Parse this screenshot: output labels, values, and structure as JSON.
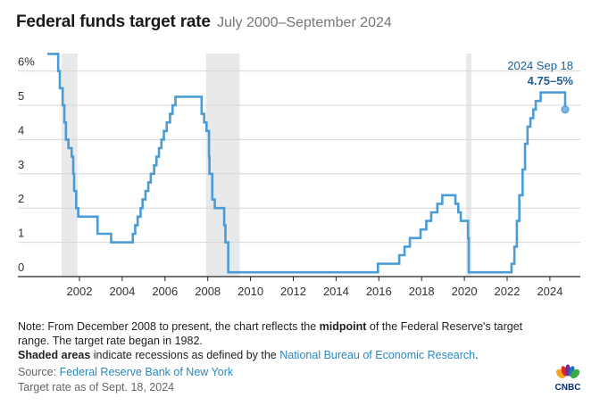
{
  "header": {
    "title": "Federal funds target rate",
    "subtitle": "July 2000–September 2024"
  },
  "annotation": {
    "date": "2024 Sep 18",
    "value": "4.75–5%"
  },
  "notes": {
    "note_prefix": "Note: From December 2008 to present, the chart reflects the ",
    "note_bold": "midpoint",
    "note_suffix": " of the Federal Reserve's target range. The target rate began in 1982.",
    "shaded_bold": "Shaded areas",
    "shaded_text": " indicate recessions as defined by the ",
    "shaded_link": "National Bureau of Economic Research",
    "shaded_end": ".",
    "source_label": "Source: ",
    "source_link": "Federal Reserve Bank of New York",
    "asof": "Target rate as of Sept. 18, 2024"
  },
  "logo": {
    "text": "CNBC"
  },
  "colors": {
    "line": "#4a9bd6",
    "recession": "#e8e9eb",
    "grid": "#d6d6d6",
    "annotation": "#1d5f95"
  },
  "chart_data": {
    "type": "line",
    "step": true,
    "ylim": [
      0,
      6
    ],
    "xlim": [
      "2000-07-01",
      "2024-09-30"
    ],
    "yticks": [
      {
        "v": 0,
        "label": "0"
      },
      {
        "v": 1,
        "label": "1"
      },
      {
        "v": 2,
        "label": "2"
      },
      {
        "v": 3,
        "label": "3"
      },
      {
        "v": 4,
        "label": "4"
      },
      {
        "v": 5,
        "label": "5"
      },
      {
        "v": 6,
        "label": "6%"
      }
    ],
    "xticks": [
      "2002",
      "2004",
      "2006",
      "2008",
      "2010",
      "2012",
      "2014",
      "2016",
      "2018",
      "2020",
      "2022",
      "2024"
    ],
    "grid": true,
    "recessions": [
      [
        "2001-03-01",
        "2001-11-30"
      ],
      [
        "2007-12-01",
        "2009-06-30"
      ],
      [
        "2020-02-01",
        "2020-04-30"
      ]
    ],
    "series": [
      {
        "points": [
          [
            "2000-07-01",
            6.5
          ],
          [
            "2001-01-03",
            6.0
          ],
          [
            "2001-01-31",
            5.5
          ],
          [
            "2001-03-20",
            5.0
          ],
          [
            "2001-04-18",
            4.5
          ],
          [
            "2001-05-15",
            4.0
          ],
          [
            "2001-06-27",
            3.75
          ],
          [
            "2001-08-21",
            3.5
          ],
          [
            "2001-09-17",
            3.0
          ],
          [
            "2001-10-02",
            2.5
          ],
          [
            "2001-11-06",
            2.0
          ],
          [
            "2001-12-11",
            1.75
          ],
          [
            "2002-11-06",
            1.25
          ],
          [
            "2003-06-25",
            1.0
          ],
          [
            "2004-06-30",
            1.25
          ],
          [
            "2004-08-10",
            1.5
          ],
          [
            "2004-09-21",
            1.75
          ],
          [
            "2004-11-10",
            2.0
          ],
          [
            "2004-12-14",
            2.25
          ],
          [
            "2005-02-02",
            2.5
          ],
          [
            "2005-03-22",
            2.75
          ],
          [
            "2005-05-03",
            3.0
          ],
          [
            "2005-06-30",
            3.25
          ],
          [
            "2005-08-09",
            3.5
          ],
          [
            "2005-09-20",
            3.75
          ],
          [
            "2005-11-01",
            4.0
          ],
          [
            "2005-12-13",
            4.25
          ],
          [
            "2006-01-31",
            4.5
          ],
          [
            "2006-03-28",
            4.75
          ],
          [
            "2006-05-10",
            5.0
          ],
          [
            "2006-06-29",
            5.25
          ],
          [
            "2007-09-18",
            4.75
          ],
          [
            "2007-10-31",
            4.5
          ],
          [
            "2007-12-11",
            4.25
          ],
          [
            "2008-01-22",
            3.5
          ],
          [
            "2008-01-30",
            3.0
          ],
          [
            "2008-03-18",
            2.25
          ],
          [
            "2008-04-30",
            2.0
          ],
          [
            "2008-10-08",
            1.5
          ],
          [
            "2008-10-29",
            1.0
          ],
          [
            "2008-12-16",
            0.125
          ],
          [
            "2015-12-17",
            0.375
          ],
          [
            "2016-12-15",
            0.625
          ],
          [
            "2017-03-16",
            0.875
          ],
          [
            "2017-06-15",
            1.125
          ],
          [
            "2017-12-14",
            1.375
          ],
          [
            "2018-03-22",
            1.625
          ],
          [
            "2018-06-14",
            1.875
          ],
          [
            "2018-09-27",
            2.125
          ],
          [
            "2018-12-20",
            2.375
          ],
          [
            "2019-08-01",
            2.125
          ],
          [
            "2019-09-19",
            1.875
          ],
          [
            "2019-10-31",
            1.625
          ],
          [
            "2020-03-04",
            1.125
          ],
          [
            "2020-03-16",
            0.125
          ],
          [
            "2022-03-17",
            0.375
          ],
          [
            "2022-05-05",
            0.875
          ],
          [
            "2022-06-16",
            1.625
          ],
          [
            "2022-07-28",
            2.375
          ],
          [
            "2022-09-22",
            3.125
          ],
          [
            "2022-11-03",
            3.875
          ],
          [
            "2022-12-15",
            4.375
          ],
          [
            "2023-02-02",
            4.625
          ],
          [
            "2023-03-23",
            4.875
          ],
          [
            "2023-05-04",
            5.125
          ],
          [
            "2023-07-27",
            5.375
          ],
          [
            "2024-09-18",
            4.875
          ]
        ]
      }
    ]
  }
}
